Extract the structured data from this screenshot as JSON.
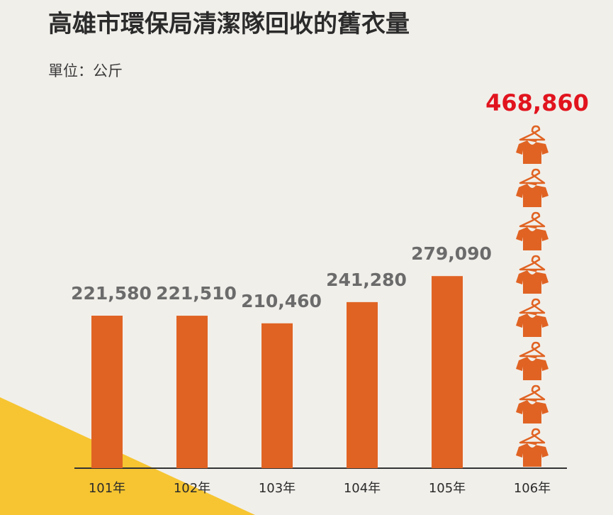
{
  "chart_data": {
    "type": "bar",
    "title": "高雄市環保局清潔隊回收的舊衣量",
    "unit_label": "單位：公斤",
    "categories": [
      "101年",
      "102年",
      "103年",
      "104年",
      "105年",
      "106年"
    ],
    "values": [
      221580,
      221510,
      210460,
      241280,
      279090,
      468860
    ],
    "value_labels": [
      "221,580",
      "221,510",
      "210,460",
      "241,280",
      "279,090",
      "468,860"
    ],
    "highlight_index": 5,
    "highlight_style": "stack of t-shirt-on-hanger icons",
    "colors": {
      "bar": "#e06323",
      "label": "#6b6b6b",
      "highlight_label": "#e1141e",
      "accent_corner": "#f6c531",
      "background": "#f1efea"
    },
    "icons": [
      "t-shirt-hanger-icon"
    ]
  }
}
